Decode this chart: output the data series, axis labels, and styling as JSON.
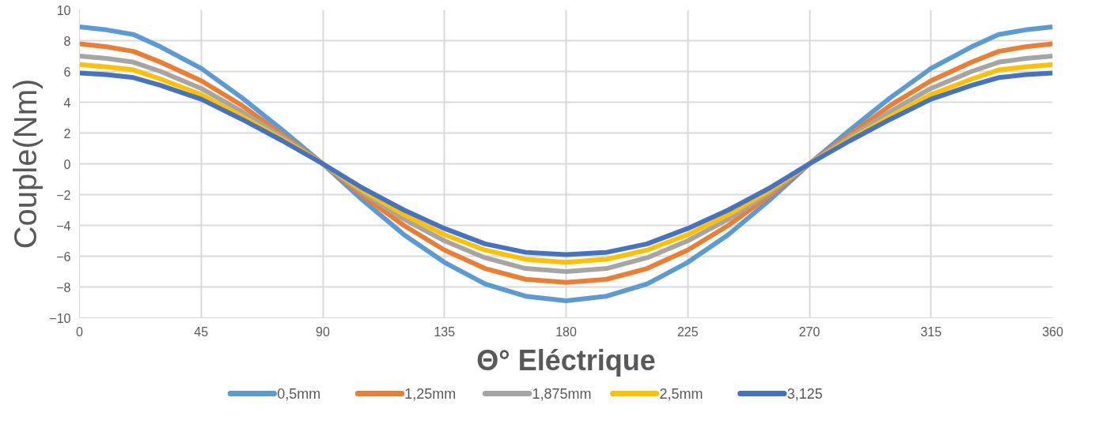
{
  "chart_data": {
    "type": "line",
    "xlabel": "Θ° Eléctrique",
    "ylabel": "Couple(Nm)",
    "x": [
      0,
      10,
      20,
      30,
      45,
      60,
      75,
      90,
      105,
      120,
      135,
      150,
      165,
      180,
      195,
      210,
      225,
      240,
      255,
      270,
      285,
      300,
      315,
      330,
      340,
      350,
      360
    ],
    "xlim": [
      0,
      360
    ],
    "xticks": [
      0,
      45,
      90,
      135,
      180,
      225,
      270,
      315,
      360
    ],
    "ylim": [
      -10,
      10
    ],
    "yticks": [
      -10,
      -8,
      -6,
      -4,
      -2,
      0,
      2,
      4,
      6,
      8,
      10
    ],
    "grid": true,
    "legend": "bottom",
    "marker": "none",
    "line_style": "solid",
    "series": [
      {
        "name": "0,5mm",
        "color": "#5b9bd5",
        "values": [
          8.9,
          8.7,
          8.4,
          7.6,
          6.2,
          4.3,
          2.2,
          0,
          -2.4,
          -4.6,
          -6.4,
          -7.8,
          -8.6,
          -8.9,
          -8.6,
          -7.8,
          -6.4,
          -4.6,
          -2.4,
          0,
          2.2,
          4.3,
          6.2,
          7.6,
          8.4,
          8.7,
          8.9
        ]
      },
      {
        "name": "1,25mm",
        "color": "#ed7d31",
        "values": [
          7.8,
          7.6,
          7.3,
          6.6,
          5.4,
          3.8,
          1.9,
          0,
          -2.1,
          -4.0,
          -5.6,
          -6.8,
          -7.5,
          -7.7,
          -7.5,
          -6.8,
          -5.6,
          -4.0,
          -2.1,
          0,
          1.9,
          3.8,
          5.4,
          6.6,
          7.3,
          7.6,
          7.8
        ]
      },
      {
        "name": "1,875mm",
        "color": "#a5a5a5",
        "values": [
          7.0,
          6.85,
          6.6,
          6.0,
          4.9,
          3.4,
          1.75,
          0,
          -1.9,
          -3.6,
          -5.0,
          -6.1,
          -6.8,
          -7.0,
          -6.8,
          -6.1,
          -5.0,
          -3.6,
          -1.9,
          0,
          1.75,
          3.4,
          4.9,
          6.0,
          6.6,
          6.85,
          7.0
        ]
      },
      {
        "name": "2,5mm",
        "color": "#ffc000",
        "values": [
          6.45,
          6.3,
          6.1,
          5.5,
          4.5,
          3.1,
          1.6,
          0,
          -1.75,
          -3.3,
          -4.6,
          -5.6,
          -6.2,
          -6.4,
          -6.2,
          -5.6,
          -4.6,
          -3.3,
          -1.75,
          0,
          1.6,
          3.1,
          4.5,
          5.5,
          6.1,
          6.3,
          6.45
        ]
      },
      {
        "name": "3,125",
        "color": "#4472c4",
        "values": [
          5.9,
          5.8,
          5.6,
          5.1,
          4.2,
          2.9,
          1.5,
          0,
          -1.6,
          -3.0,
          -4.2,
          -5.2,
          -5.75,
          -5.9,
          -5.75,
          -5.2,
          -4.2,
          -3.0,
          -1.6,
          0,
          1.5,
          2.9,
          4.2,
          5.1,
          5.6,
          5.8,
          5.9
        ]
      }
    ]
  }
}
